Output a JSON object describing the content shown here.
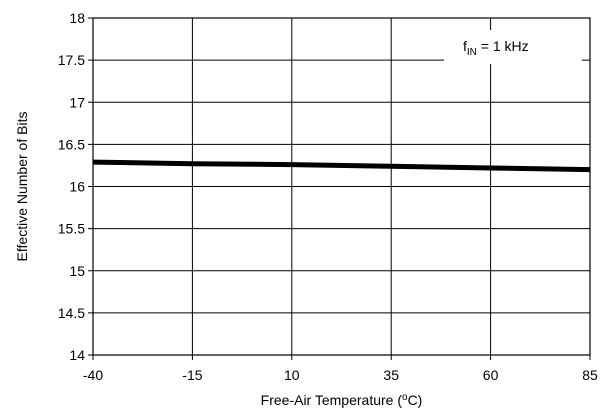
{
  "chart_data": {
    "type": "line",
    "title": "",
    "xlabel": "Free-Air Temperature (",
    "xlabel_unit_sup": "o",
    "xlabel_unit_rest": "C)",
    "ylabel": "Effective Number of Bits",
    "xlim": [
      -40,
      85
    ],
    "ylim": [
      14,
      18
    ],
    "x_ticks": [
      -40,
      -15,
      10,
      35,
      60,
      85
    ],
    "x_tick_labels": [
      "-40",
      "-15",
      "10",
      "35",
      "60",
      "85"
    ],
    "y_ticks": [
      14,
      14.5,
      15,
      15.5,
      16,
      16.5,
      17,
      17.5,
      18
    ],
    "y_tick_labels": [
      "14",
      "14.5",
      "15",
      "15.5",
      "16",
      "16.5",
      "17",
      "17.5",
      "18"
    ],
    "grid": true,
    "annotation": {
      "main": "f",
      "sub": "IN",
      "rest": " = 1 kHz",
      "placement": "top-right"
    },
    "series": [
      {
        "x": [
          -40,
          -15,
          10,
          35,
          60,
          85
        ],
        "y": [
          16.29,
          16.27,
          16.26,
          16.24,
          16.22,
          16.2
        ],
        "color": "#000000"
      }
    ]
  }
}
